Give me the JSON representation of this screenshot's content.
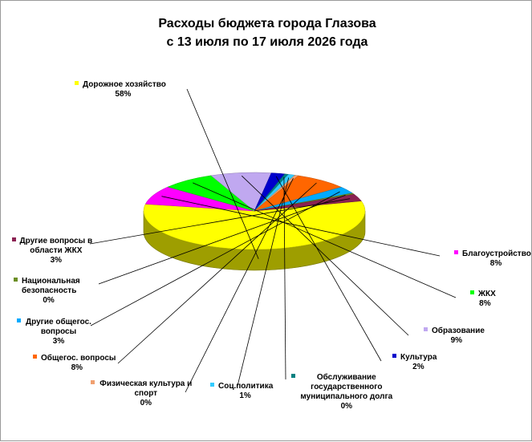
{
  "chart_data": {
    "type": "pie",
    "title_lines": [
      "Расходы бюджета города Глазова",
      "с 13 июля по 17 июля 2026 года"
    ],
    "slices": [
      {
        "name": "Дорожное хозяйство",
        "value_label": "58%",
        "value": 58,
        "color": "#ffff00"
      },
      {
        "name": "Благоустройство",
        "value_label": "8%",
        "value": 8,
        "color": "#ff00ff"
      },
      {
        "name": "ЖКХ",
        "value_label": "8%",
        "value": 8,
        "color": "#00ff00"
      },
      {
        "name": "Образование",
        "value_label": "9%",
        "value": 9,
        "color": "#c0a8f0"
      },
      {
        "name": "Культура",
        "value_label": "2%",
        "value": 2,
        "color": "#0000cc"
      },
      {
        "name": "Обслуживание государственного муниципального долга",
        "value_label": "0%",
        "value": 0,
        "color": "#008080"
      },
      {
        "name": "Соц.политика",
        "value_label": "1%",
        "value": 1,
        "color": "#33ccff"
      },
      {
        "name": "Физическая культура и спорт",
        "value_label": "0%",
        "value": 0,
        "color": "#f0a070"
      },
      {
        "name": "Общегос. вопросы",
        "value_label": "8%",
        "value": 8,
        "color": "#ff6600"
      },
      {
        "name": "Другие общегос. вопросы",
        "value_label": "3%",
        "value": 3,
        "color": "#00aaff"
      },
      {
        "name": "Национальная безопасность",
        "value_label": "0%",
        "value": 0,
        "color": "#6b8e23"
      },
      {
        "name": "Другие вопросы в области ЖКХ",
        "value_label": "3%",
        "value": 3,
        "color": "#8b2252"
      }
    ]
  }
}
